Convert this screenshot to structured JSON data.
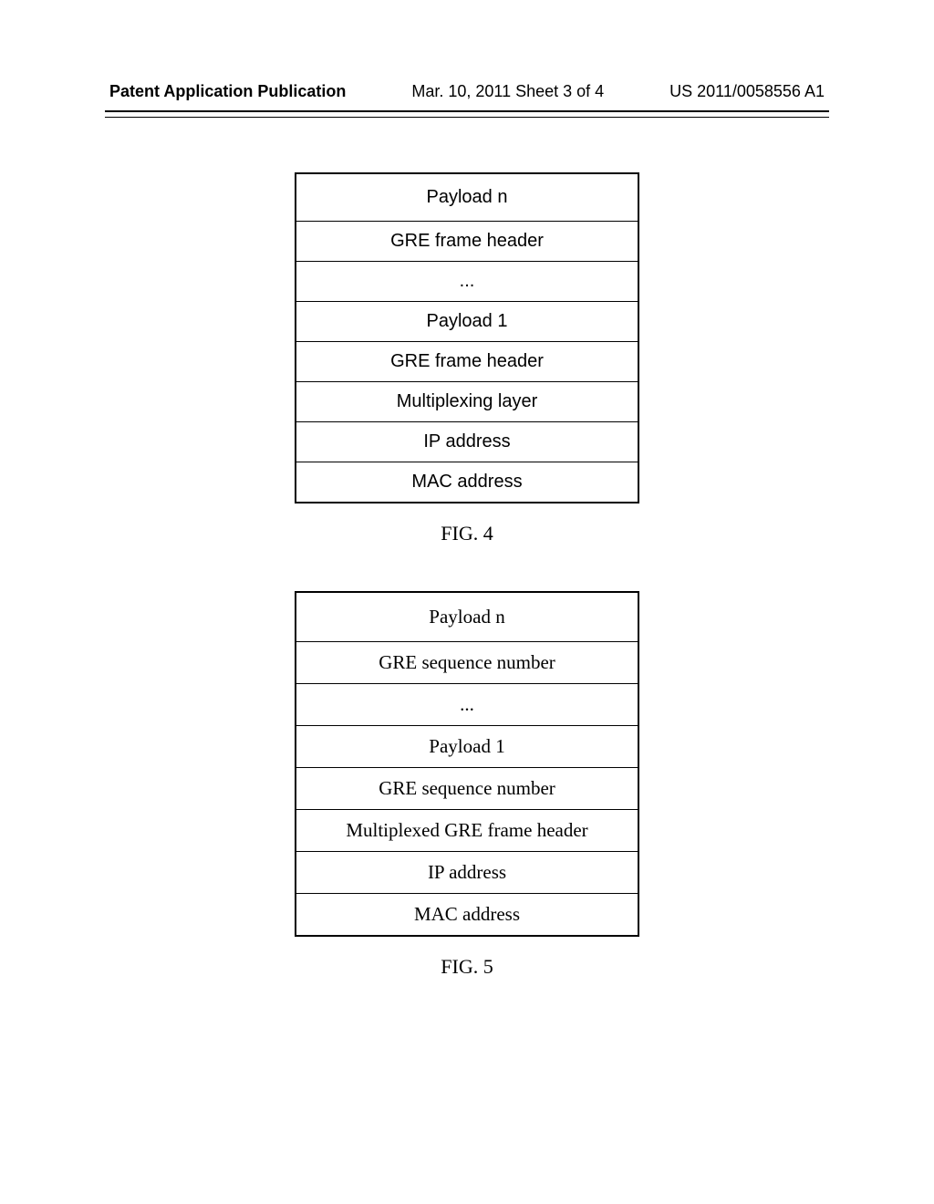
{
  "header": {
    "left": "Patent Application Publication",
    "center": "Mar. 10, 2011  Sheet 3 of 4",
    "right": "US 2011/0058556 A1"
  },
  "figure4": {
    "rows": [
      "Payload n",
      "GRE frame header",
      "...",
      "Payload 1",
      "GRE frame header",
      "Multiplexing layer",
      "IP address",
      "MAC address"
    ],
    "label": "FIG. 4"
  },
  "figure5": {
    "rows": [
      "Payload n",
      "GRE sequence number",
      "...",
      "Payload 1",
      "GRE sequence number",
      "Multiplexed GRE frame header",
      "IP address",
      "MAC address"
    ],
    "label": "FIG. 5"
  }
}
